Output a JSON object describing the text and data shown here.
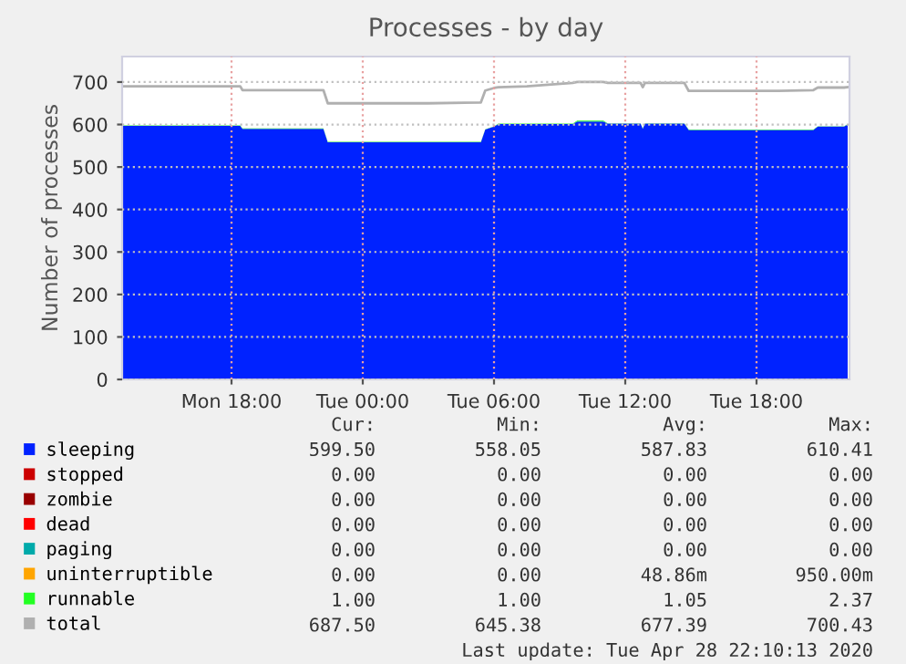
{
  "chart_data": {
    "type": "area",
    "title": "Processes - by day",
    "ylabel": "Number of processes",
    "stacked": true,
    "x": [
      "2020-04-27T13:00",
      "2020-04-27T15:00",
      "2020-04-27T18:24",
      "2020-04-27T18:30",
      "2020-04-27T22:12",
      "2020-04-27T22:24",
      "2020-04-28T01:00",
      "2020-04-28T03:00",
      "2020-04-28T05:24",
      "2020-04-28T05:36",
      "2020-04-28T06:00",
      "2020-04-28T06:12",
      "2020-04-28T07:30",
      "2020-04-28T09:36",
      "2020-04-28T09:48",
      "2020-04-28T11:00",
      "2020-04-28T11:12",
      "2020-04-28T12:42",
      "2020-04-28T12:48",
      "2020-04-28T12:54",
      "2020-04-28T14:42",
      "2020-04-28T14:54",
      "2020-04-28T17:00",
      "2020-04-28T19:00",
      "2020-04-28T20:36",
      "2020-04-28T20:48",
      "2020-04-28T22:00",
      "2020-04-28T22:10"
    ],
    "series": [
      {
        "name": "sleeping",
        "color": "#0022ff",
        "values": [
          597,
          597,
          597,
          590,
          590,
          558,
          558,
          558,
          558,
          588,
          595,
          601,
          601,
          601,
          607,
          607,
          602,
          602,
          590,
          602,
          602,
          587,
          587,
          587,
          587,
          595,
          595,
          600
        ]
      },
      {
        "name": "stopped",
        "color": "#cc0000",
        "values": [
          null,
          null,
          null,
          null,
          null,
          null,
          null,
          null,
          null,
          null,
          null,
          null,
          null,
          null,
          null,
          null,
          null,
          null,
          null,
          null,
          null,
          null,
          null,
          null,
          null,
          null,
          null,
          null
        ]
      },
      {
        "name": "zombie",
        "color": "#990000",
        "values": [
          null,
          null,
          null,
          null,
          null,
          null,
          null,
          null,
          null,
          null,
          null,
          null,
          null,
          null,
          null,
          null,
          null,
          null,
          null,
          null,
          null,
          null,
          null,
          null,
          null,
          null,
          null,
          null
        ]
      },
      {
        "name": "dead",
        "color": "#ff0000",
        "values": [
          null,
          null,
          null,
          null,
          null,
          null,
          null,
          null,
          null,
          null,
          null,
          null,
          null,
          null,
          null,
          null,
          null,
          null,
          null,
          null,
          null,
          null,
          null,
          null,
          null,
          null,
          null,
          null
        ]
      },
      {
        "name": "paging",
        "color": "#00aaaa",
        "values": [
          null,
          null,
          null,
          null,
          null,
          null,
          null,
          null,
          null,
          null,
          null,
          null,
          null,
          null,
          null,
          null,
          null,
          null,
          null,
          null,
          null,
          null,
          null,
          null,
          null,
          null,
          null,
          null
        ]
      },
      {
        "name": "uninterruptible",
        "color": "#ffa500",
        "values": [
          null,
          null,
          null,
          null,
          null,
          null,
          null,
          null,
          null,
          null,
          null,
          null,
          null,
          null,
          null,
          null,
          null,
          null,
          null,
          null,
          null,
          null,
          null,
          null,
          null,
          null,
          null,
          null
        ]
      },
      {
        "name": "runnable",
        "color": "#22ff22",
        "values": [
          1,
          1,
          1,
          1,
          1,
          1,
          1,
          1,
          1,
          1,
          1,
          1,
          1,
          1,
          2,
          2,
          1,
          1,
          1,
          1,
          1,
          1,
          1,
          1,
          1,
          1,
          1,
          1
        ]
      },
      {
        "name": "total",
        "type": "line",
        "color": "#b0b0b0",
        "values": [
          690,
          690,
          690,
          681,
          681,
          650,
          650,
          650,
          652,
          680,
          686,
          688,
          690,
          698,
          700,
          700,
          698,
          698,
          688,
          698,
          698,
          679,
          679,
          679,
          681,
          687,
          687,
          688
        ]
      }
    ],
    "xlim": [
      "2020-04-27T13:00",
      "2020-04-28T22:15"
    ],
    "xticks": [
      {
        "value": "2020-04-27T18:00",
        "label": "Mon 18:00"
      },
      {
        "value": "2020-04-28T00:00",
        "label": "Tue 00:00"
      },
      {
        "value": "2020-04-28T06:00",
        "label": "Tue 06:00"
      },
      {
        "value": "2020-04-28T12:00",
        "label": "Tue 12:00"
      },
      {
        "value": "2020-04-28T18:00",
        "label": "Tue 18:00"
      }
    ],
    "ylim": [
      0,
      760
    ],
    "yticks": [
      0,
      100,
      200,
      300,
      400,
      500,
      600,
      700
    ],
    "grid": true,
    "legend": "bottom",
    "annotations": [
      "Cur:",
      "Min:",
      "Avg:",
      "Max:",
      "599.50",
      "558.05",
      "587.83",
      "610.41",
      "0.00",
      "0.00",
      "0.00",
      "0.00",
      "0.00",
      "0.00",
      "0.00",
      "0.00",
      "0.00",
      "0.00",
      "0.00",
      "0.00",
      "0.00",
      "0.00",
      "0.00",
      "0.00",
      "0.00",
      "0.00",
      "48.86m",
      "950.00m",
      "1.00",
      "1.00",
      "1.05",
      "2.37",
      "687.50",
      "645.38",
      "677.39",
      "700.43",
      "Last update: Tue Apr 28 22:10:13 2020"
    ]
  }
}
